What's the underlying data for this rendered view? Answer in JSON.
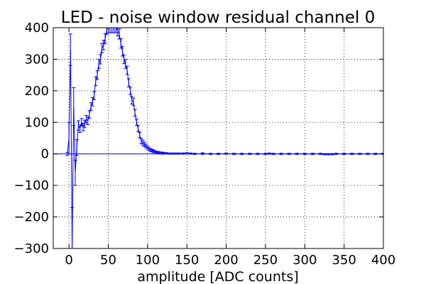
{
  "chart_data": {
    "type": "scatter",
    "title": "LED - noise window residual channel 0",
    "xlabel": "amplitude [ADC counts]",
    "ylabel": "",
    "xlim": [
      -20,
      400
    ],
    "ylim": [
      -300,
      400
    ],
    "xticks": [
      "0",
      "50",
      "100",
      "150",
      "200",
      "250",
      "300",
      "350",
      "400"
    ],
    "xtick_values": [
      0,
      50,
      100,
      150,
      200,
      250,
      300,
      350,
      400
    ],
    "yticks": [
      "−300",
      "−200",
      "−100",
      "0",
      "100",
      "200",
      "300",
      "400"
    ],
    "ytick_values": [
      -300,
      -200,
      -100,
      0,
      100,
      200,
      300,
      400
    ],
    "grid": true,
    "grid_style": "dotted",
    "legend": "none",
    "baseline": 0,
    "series": [
      {
        "color": "#0000ff",
        "style": "errorbar-step",
        "x": [
          -2,
          0,
          2,
          4,
          6,
          8,
          10,
          12,
          14,
          16,
          18,
          20,
          22,
          24,
          26,
          28,
          30,
          32,
          34,
          36,
          38,
          40,
          42,
          44,
          46,
          48,
          50,
          52,
          54,
          56,
          58,
          60,
          62,
          64,
          66,
          68,
          70,
          72,
          74,
          76,
          78,
          80,
          82,
          84,
          86,
          88,
          90,
          92,
          94,
          96,
          98,
          100,
          102,
          104,
          106,
          108,
          110,
          112,
          114,
          116,
          118,
          120,
          124,
          128,
          132,
          136,
          140,
          145,
          150,
          155,
          160,
          170,
          180,
          190,
          200,
          210,
          220,
          230,
          240,
          250,
          255,
          260,
          270,
          280,
          290,
          300,
          310,
          320,
          325,
          330,
          335,
          340,
          350,
          360,
          370,
          380,
          390,
          400
        ],
        "y": [
          0,
          50,
          330,
          -300,
          150,
          -60,
          20,
          90,
          80,
          100,
          85,
          95,
          110,
          105,
          125,
          150,
          165,
          185,
          230,
          250,
          285,
          300,
          335,
          345,
          365,
          395,
          400,
          400,
          400,
          400,
          400,
          400,
          390,
          380,
          350,
          325,
          300,
          285,
          265,
          225,
          200,
          170,
          165,
          130,
          100,
          80,
          60,
          40,
          35,
          30,
          25,
          20,
          15,
          12,
          10,
          8,
          6,
          5,
          4,
          3,
          3,
          2,
          2,
          1,
          1,
          1,
          1,
          1,
          2,
          1,
          0,
          1,
          0,
          0,
          1,
          0,
          0,
          0,
          0,
          0,
          1,
          0,
          0,
          0,
          0,
          0,
          0,
          0,
          -1,
          -1,
          -1,
          0,
          0,
          0,
          0,
          0,
          0,
          0
        ],
        "yerr": [
          5,
          50,
          50,
          130,
          60,
          40,
          25,
          15,
          12,
          12,
          12,
          12,
          12,
          12,
          12,
          12,
          13,
          13,
          14,
          14,
          15,
          15,
          15,
          15,
          16,
          16,
          16,
          16,
          16,
          16,
          16,
          16,
          16,
          16,
          15,
          15,
          14,
          14,
          13,
          13,
          12,
          12,
          12,
          11,
          10,
          10,
          9,
          8,
          8,
          7,
          6,
          5,
          5,
          4,
          4,
          4,
          3,
          3,
          3,
          3,
          3,
          3,
          2,
          2,
          2,
          2,
          2,
          2,
          2,
          2,
          2,
          3,
          2,
          2,
          2,
          2,
          2,
          2,
          2,
          2,
          2,
          2,
          2,
          2,
          2,
          2,
          2,
          2,
          2,
          2,
          2,
          2,
          2,
          2,
          2,
          2,
          2,
          2
        ]
      }
    ]
  }
}
